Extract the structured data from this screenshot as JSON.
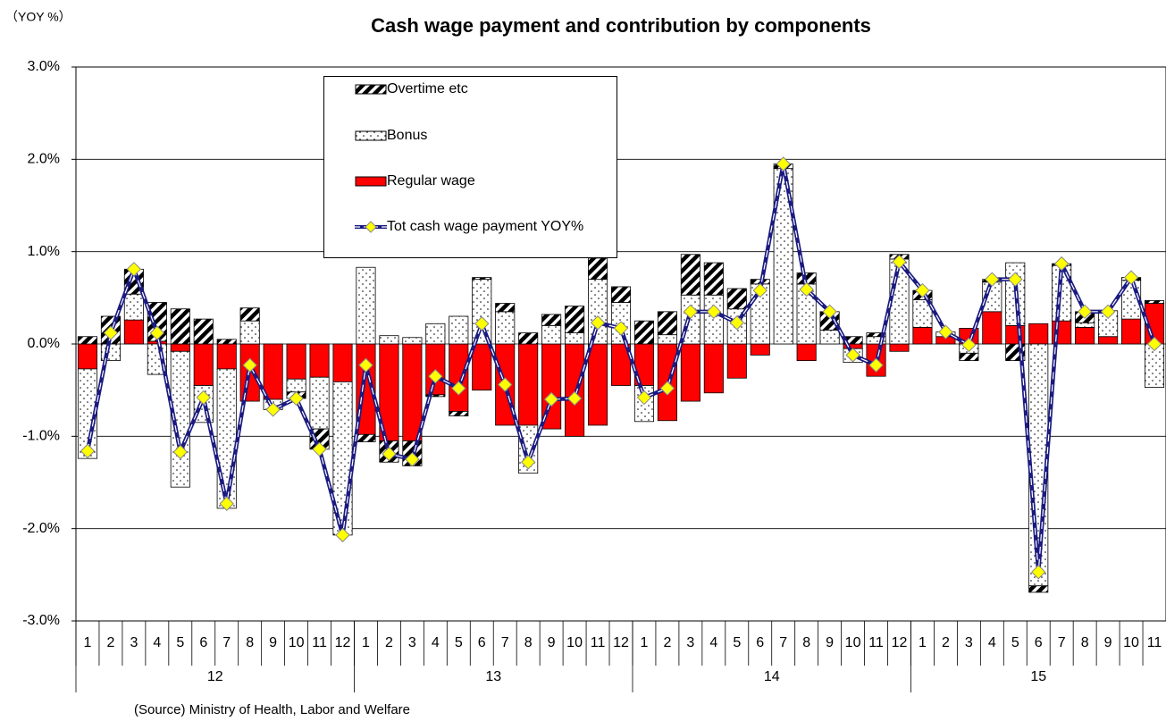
{
  "chart_data": {
    "type": "bar",
    "title": "Cash wage payment and contribution by components",
    "unit_label": "（YOY %）",
    "source": "(Source) Ministry of Health, Labor and Welfare",
    "categories": [
      "1",
      "2",
      "3",
      "4",
      "5",
      "6",
      "7",
      "8",
      "9",
      "10",
      "11",
      "12",
      "1",
      "2",
      "3",
      "4",
      "5",
      "6",
      "7",
      "8",
      "9",
      "10",
      "11",
      "12",
      "1",
      "2",
      "3",
      "4",
      "5",
      "6",
      "7",
      "8",
      "9",
      "10",
      "11",
      "12",
      "1",
      "2",
      "3",
      "4",
      "5",
      "6",
      "7",
      "8",
      "9",
      "10",
      "11"
    ],
    "years": [
      "12",
      "13",
      "14",
      "15"
    ],
    "series": [
      {
        "name": "Regular wage",
        "color": "#ff0000",
        "pattern": "solid",
        "values": [
          -0.27,
          0.0,
          0.26,
          0.03,
          -0.08,
          -0.45,
          -0.27,
          -0.62,
          -0.6,
          -0.38,
          -0.36,
          -0.41,
          -0.98,
          -1.05,
          -1.05,
          -0.55,
          -0.73,
          -0.5,
          -0.88,
          -0.88,
          -0.92,
          -1.0,
          -0.88,
          -0.45,
          -0.45,
          -0.83,
          -0.62,
          -0.53,
          -0.37,
          -0.12,
          0.0,
          -0.18,
          0.0,
          -0.05,
          -0.35,
          -0.08,
          0.18,
          0.08,
          0.17,
          0.35,
          0.2,
          0.22,
          0.25,
          0.18,
          0.08,
          0.27,
          0.44
        ]
      },
      {
        "name": "Bonus",
        "color": "#ffffff",
        "pattern": "dots",
        "values": [
          -0.97,
          -0.18,
          0.28,
          -0.33,
          -1.47,
          -0.4,
          -1.51,
          0.25,
          -0.11,
          -0.14,
          -0.56,
          -1.66,
          0.83,
          0.09,
          0.07,
          0.22,
          0.3,
          0.7,
          0.35,
          -0.52,
          0.2,
          0.12,
          0.7,
          0.45,
          -0.39,
          0.1,
          0.53,
          0.53,
          0.38,
          0.65,
          1.9,
          0.65,
          0.15,
          -0.15,
          0.08,
          0.92,
          0.3,
          0.05,
          -0.1,
          0.32,
          0.68,
          -2.62,
          0.6,
          0.05,
          0.28,
          0.42,
          -0.47
        ]
      },
      {
        "name": "Overtime etc",
        "color": "#000000",
        "pattern": "hatch",
        "values": [
          0.08,
          0.3,
          0.27,
          0.42,
          0.38,
          0.27,
          0.05,
          0.14,
          0.0,
          -0.07,
          -0.22,
          0.0,
          -0.08,
          -0.23,
          -0.27,
          -0.02,
          -0.05,
          0.02,
          0.09,
          0.12,
          0.12,
          0.29,
          0.23,
          0.17,
          0.25,
          0.25,
          0.44,
          0.35,
          0.22,
          0.05,
          0.05,
          0.12,
          0.2,
          0.08,
          0.04,
          0.05,
          0.1,
          0.0,
          -0.08,
          0.03,
          -0.18,
          -0.07,
          0.02,
          0.12,
          0.0,
          0.03,
          0.03
        ]
      },
      {
        "name": "Tot cash wage payment YOY%",
        "color": "#1a1a80",
        "type": "line",
        "marker_color": "#ffff00",
        "values": [
          -1.16,
          0.12,
          0.81,
          0.12,
          -1.17,
          -0.58,
          -1.73,
          -0.23,
          -0.71,
          -0.59,
          -1.14,
          -2.07,
          -0.23,
          -1.19,
          -1.25,
          -0.35,
          -0.48,
          0.22,
          -0.44,
          -1.28,
          -0.6,
          -0.59,
          0.23,
          0.17,
          -0.58,
          -0.48,
          0.35,
          0.35,
          0.23,
          0.58,
          1.95,
          0.59,
          0.35,
          -0.12,
          -0.23,
          0.89,
          0.58,
          0.13,
          -0.01,
          0.7,
          0.7,
          -2.47,
          0.87,
          0.35,
          0.35,
          0.72,
          0.0
        ]
      }
    ],
    "legend_order": [
      2,
      1,
      0,
      3
    ],
    "ylim": [
      -3,
      3
    ],
    "yticks": [
      {
        "value": -3,
        "label": "-3.0%"
      },
      {
        "value": -2,
        "label": "-2.0%"
      },
      {
        "value": -1,
        "label": "-1.0%"
      },
      {
        "value": 0,
        "label": "0.0%"
      },
      {
        "value": 1,
        "label": "1.0%"
      },
      {
        "value": 2,
        "label": "2.0%"
      },
      {
        "value": 3,
        "label": "3.0%"
      }
    ],
    "grid": true
  }
}
